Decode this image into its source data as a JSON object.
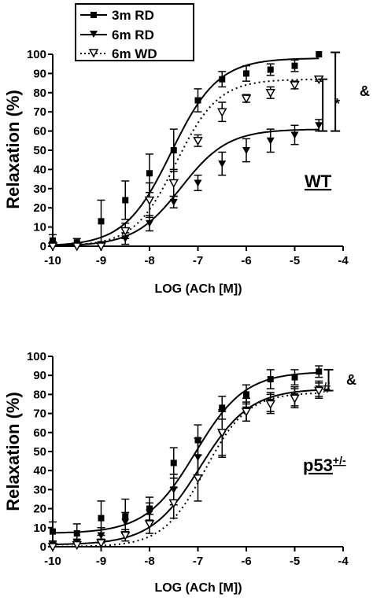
{
  "legend": [
    "3m RD",
    "6m RD",
    "6m WD"
  ],
  "chart_data": [
    {
      "type": "line",
      "panel_label": "WT",
      "xlabel": "LOG (ACh [M])",
      "ylabel": "Relaxation (%)",
      "xlim": [
        -10,
        -4
      ],
      "ylim": [
        0,
        100
      ],
      "x_ticks": [
        "-10",
        "-9",
        "-8",
        "-7",
        "-6",
        "-5",
        "-4"
      ],
      "y_ticks": [
        "0",
        "10",
        "20",
        "30",
        "40",
        "50",
        "60",
        "70",
        "80",
        "90",
        "100"
      ],
      "x": [
        -10,
        -9.5,
        -9,
        -8.5,
        -8,
        -7.5,
        -7,
        -6.5,
        -6,
        -5.5,
        -5,
        -4.5
      ],
      "series": [
        {
          "name": "3m RD",
          "marker": "square",
          "line": "solid",
          "values": [
            3,
            2,
            13,
            24,
            38,
            50,
            76,
            87,
            90,
            92,
            94,
            100
          ],
          "errors": [
            3,
            2,
            11,
            10,
            10,
            11,
            6,
            4,
            4,
            3,
            3,
            0
          ],
          "fit": {
            "bottom": 0,
            "top": 98,
            "logEC50": -7.55,
            "hill": 0.9
          }
        },
        {
          "name": "6m RD",
          "marker": "triangle-down",
          "line": "solid",
          "values": [
            1,
            0,
            1,
            4,
            12,
            23,
            33,
            43,
            50,
            55,
            58,
            63
          ],
          "errors": [
            1,
            1,
            1,
            3,
            4,
            3,
            4,
            6,
            6,
            6,
            5,
            3
          ],
          "fit": {
            "bottom": 0,
            "top": 61,
            "logEC50": -7.35,
            "hill": 0.9
          }
        },
        {
          "name": "6m WD",
          "marker": "triangle-down-open",
          "line": "dotted",
          "values": [
            0,
            0,
            0,
            8,
            24,
            33,
            55,
            70,
            77,
            80,
            84,
            87
          ],
          "errors": [
            1,
            1,
            1,
            4,
            9,
            7,
            3,
            5,
            2,
            3,
            2,
            1
          ],
          "fit": {
            "bottom": 0,
            "top": 87,
            "logEC50": -7.45,
            "hill": 1.0
          }
        }
      ],
      "annotations": [
        {
          "text": "*",
          "x_span": [
            -4.42,
            -4.42
          ],
          "y_span": [
            60,
            87
          ]
        },
        {
          "text": "&",
          "x_span": [
            -4.16,
            -4.16
          ],
          "y_span": [
            60,
            101
          ]
        }
      ]
    },
    {
      "type": "line",
      "panel_label": "p53",
      "panel_label_sup": "+/-",
      "xlabel": "LOG (ACh [M])",
      "ylabel": "Relaxation (%)",
      "xlim": [
        -10,
        -4
      ],
      "ylim": [
        0,
        100
      ],
      "x_ticks": [
        "-10",
        "-9",
        "-8",
        "-7",
        "-6",
        "-5",
        "-4"
      ],
      "y_ticks": [
        "0",
        "10",
        "20",
        "30",
        "40",
        "50",
        "60",
        "70",
        "80",
        "90",
        "100"
      ],
      "x": [
        -10,
        -9.5,
        -9,
        -8.5,
        -8,
        -7.5,
        -7,
        -6.5,
        -6,
        -5.5,
        -5,
        -4.5
      ],
      "series": [
        {
          "name": "3m RD",
          "marker": "square",
          "line": "solid",
          "values": [
            8,
            7,
            15,
            16,
            20,
            44,
            56,
            73,
            80,
            88,
            89,
            92
          ],
          "errors": [
            5,
            5,
            9,
            9,
            6,
            8,
            8,
            6,
            5,
            5,
            4,
            3
          ],
          "fit": {
            "bottom": 7,
            "top": 92,
            "logEC50": -7.05,
            "hill": 0.85
          }
        },
        {
          "name": "6m RD",
          "marker": "triangle-down",
          "line": "solid",
          "values": [
            1,
            2,
            6,
            13,
            18,
            30,
            47,
            59,
            72,
            76,
            79,
            83
          ],
          "errors": [
            2,
            2,
            4,
            5,
            5,
            8,
            10,
            12,
            6,
            5,
            5,
            4
          ],
          "fit": {
            "bottom": 1,
            "top": 83,
            "logEC50": -6.95,
            "hill": 0.85
          }
        },
        {
          "name": "6m WD",
          "marker": "triangle-down-open",
          "line": "dotted",
          "values": [
            0,
            1,
            2,
            6,
            12,
            23,
            36,
            60,
            71,
            75,
            78,
            82
          ],
          "errors": [
            1,
            1,
            2,
            3,
            5,
            8,
            12,
            12,
            5,
            5,
            5,
            4
          ],
          "fit": {
            "bottom": 0,
            "top": 81,
            "logEC50": -6.85,
            "hill": 1.0
          }
        }
      ],
      "annotations": [
        {
          "text": "#",
          "x_span": [
            -4.5,
            -4.5
          ],
          "y_span": [
            82,
            82
          ]
        },
        {
          "text": "&",
          "x_span": [
            -4.3,
            -4.3
          ],
          "y_span": [
            82,
            93
          ]
        }
      ]
    }
  ]
}
